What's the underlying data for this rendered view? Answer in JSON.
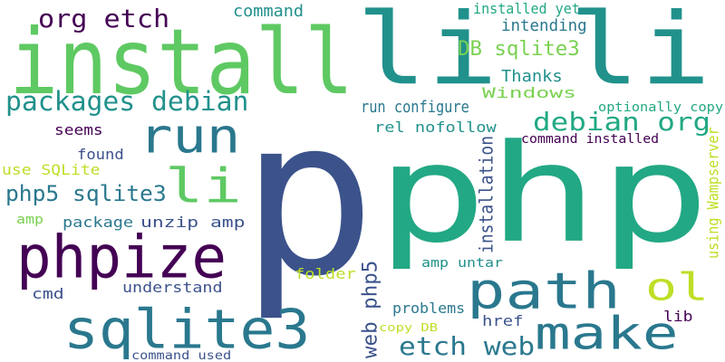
{
  "colors": {
    "background": "#ffffff",
    "palette": [
      "#440154",
      "#3b528b",
      "#21918c",
      "#2a788e",
      "#22a884",
      "#5ec962",
      "#7ad151",
      "#bddf26",
      "#fde725"
    ]
  },
  "words": [
    {
      "name": "word-p",
      "text": "p",
      "color": "#3b528b"
    },
    {
      "name": "word-php",
      "text": "php",
      "color": "#22a884"
    },
    {
      "name": "word-li-li",
      "text": "li li",
      "color": "#21918c"
    },
    {
      "name": "word-install",
      "text": "install",
      "color": "#5ec962"
    },
    {
      "name": "word-phpize",
      "text": "phpize",
      "color": "#440154"
    },
    {
      "name": "word-sqlite3",
      "text": "sqlite3",
      "color": "#2a788e"
    },
    {
      "name": "word-make",
      "text": "make",
      "color": "#2a788e"
    },
    {
      "name": "word-path",
      "text": "path",
      "color": "#2a788e"
    },
    {
      "name": "word-run",
      "text": "run",
      "color": "#2a788e"
    },
    {
      "name": "word-li",
      "text": "li",
      "color": "#5ec962"
    },
    {
      "name": "word-ol",
      "text": "ol",
      "color": "#bddf26"
    },
    {
      "name": "word-org-etch",
      "text": "org etch",
      "color": "#440154"
    },
    {
      "name": "word-packages-debian",
      "text": "packages debian",
      "color": "#21918c"
    },
    {
      "name": "word-debian-org",
      "text": "debian org",
      "color": "#22a884"
    },
    {
      "name": "word-etch-web",
      "text": "etch web",
      "color": "#2a788e"
    },
    {
      "name": "word-web-php5",
      "text": "web php5",
      "color": "#3b528b"
    },
    {
      "name": "word-php5-sqlite3",
      "text": "php5 sqlite3",
      "color": "#2a788e"
    },
    {
      "name": "word-db-sqlite3",
      "text": "DB sqlite3",
      "color": "#7ad151"
    },
    {
      "name": "word-command",
      "text": "command",
      "color": "#21918c"
    },
    {
      "name": "word-installed-yet",
      "text": "installed yet",
      "color": "#22a884"
    },
    {
      "name": "word-intending",
      "text": "intending",
      "color": "#2a788e"
    },
    {
      "name": "word-thanks",
      "text": "Thanks",
      "color": "#21918c"
    },
    {
      "name": "word-windows",
      "text": "Windows",
      "color": "#7ad151"
    },
    {
      "name": "word-run-configure",
      "text": "run configure",
      "color": "#2a788e"
    },
    {
      "name": "word-optionally-copy",
      "text": "optionally copy",
      "color": "#22a884"
    },
    {
      "name": "word-rel-nofollow",
      "text": "rel nofollow",
      "color": "#21918c"
    },
    {
      "name": "word-command-installed",
      "text": "command installed",
      "color": "#440154"
    },
    {
      "name": "word-seems",
      "text": "seems",
      "color": "#440154"
    },
    {
      "name": "word-found",
      "text": "found",
      "color": "#3b528b"
    },
    {
      "name": "word-use-sqlite",
      "text": "use SQLite",
      "color": "#bddf26"
    },
    {
      "name": "word-installation",
      "text": "installation",
      "color": "#3b528b"
    },
    {
      "name": "word-using-wampserver",
      "text": "using Wampserver",
      "color": "#bddf26"
    },
    {
      "name": "word-amp",
      "text": "amp",
      "color": "#7ad151"
    },
    {
      "name": "word-package",
      "text": "package",
      "color": "#2a788e"
    },
    {
      "name": "word-unzip-amp",
      "text": "unzip amp",
      "color": "#3b528b"
    },
    {
      "name": "word-amp-untar",
      "text": "amp untar",
      "color": "#21918c"
    },
    {
      "name": "word-folder",
      "text": "folder",
      "color": "#bddf26"
    },
    {
      "name": "word-understand",
      "text": "understand",
      "color": "#3b528b"
    },
    {
      "name": "word-cmd",
      "text": "cmd",
      "color": "#3b528b"
    },
    {
      "name": "word-problems",
      "text": "problems",
      "color": "#2a788e"
    },
    {
      "name": "word-href",
      "text": "href",
      "color": "#3b528b"
    },
    {
      "name": "word-lib",
      "text": "lib",
      "color": "#440154"
    },
    {
      "name": "word-copy-db",
      "text": "copy DB",
      "color": "#bddf26"
    },
    {
      "name": "word-command-used",
      "text": "command used",
      "color": "#3b528b"
    }
  ]
}
